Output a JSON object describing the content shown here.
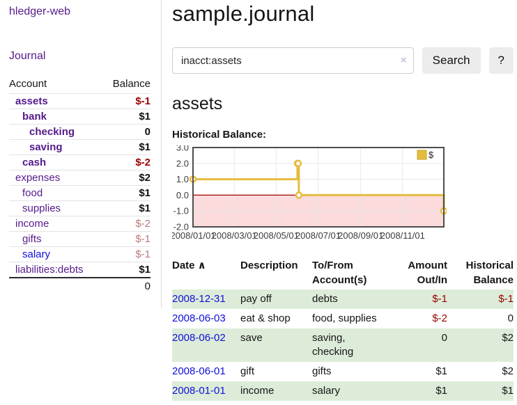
{
  "app": {
    "brand": "hledger-web"
  },
  "sidebar": {
    "journal_label": "Journal",
    "table": {
      "account_header": "Account",
      "balance_header": "Balance",
      "rows": [
        {
          "account": "assets",
          "balance": "$-1",
          "level": 1,
          "bold": true,
          "link_color": "purple",
          "balance_class": "neg-strong"
        },
        {
          "account": "bank",
          "balance": "$1",
          "level": 2,
          "bold": true,
          "link_color": "purple",
          "balance_class": "num-strong"
        },
        {
          "account": "checking",
          "balance": "0",
          "level": 3,
          "bold": true,
          "link_color": "purple",
          "balance_class": "num-strong"
        },
        {
          "account": "saving",
          "balance": "$1",
          "level": 3,
          "bold": true,
          "link_color": "purple",
          "balance_class": "num-strong"
        },
        {
          "account": "cash",
          "balance": "$-2",
          "level": 2,
          "bold": true,
          "link_color": "purple",
          "balance_class": "neg-strong"
        },
        {
          "account": "expenses",
          "balance": "$2",
          "level": 1,
          "bold": false,
          "link_color": "purple",
          "balance_class": "num"
        },
        {
          "account": "food",
          "balance": "$1",
          "level": 2,
          "bold": false,
          "link_color": "purple",
          "balance_class": "num"
        },
        {
          "account": "supplies",
          "balance": "$1",
          "level": 2,
          "bold": false,
          "link_color": "purple",
          "balance_class": "num"
        },
        {
          "account": "income",
          "balance": "$-2",
          "level": 1,
          "bold": false,
          "link_color": "purple",
          "balance_class": "neg-muted"
        },
        {
          "account": "gifts",
          "balance": "$-1",
          "level": 2,
          "bold": false,
          "link_color": "purple",
          "balance_class": "neg-muted"
        },
        {
          "account": "salary",
          "balance": "$-1",
          "level": 2,
          "bold": false,
          "link_color": "blue",
          "balance_class": "neg-muted"
        },
        {
          "account": "liabilities:debts",
          "balance": "$1",
          "level": 1,
          "bold": false,
          "link_color": "purple",
          "balance_class": "num"
        }
      ],
      "total": "0"
    }
  },
  "header": {
    "title": "sample.journal"
  },
  "search": {
    "value": "inacct:assets",
    "clear_icon": "×",
    "button_label": "Search",
    "help_label": "?"
  },
  "account_page": {
    "heading": "assets",
    "chart_label": "Historical Balance:"
  },
  "chart_data": {
    "type": "line",
    "title": "Historical Balance",
    "step": "after",
    "series": [
      {
        "name": "$",
        "color": "#e6bc3e",
        "points": [
          [
            "2008-01-01",
            1
          ],
          [
            "2008-06-01",
            2
          ],
          [
            "2008-06-02",
            2
          ],
          [
            "2008-06-03",
            0
          ],
          [
            "2008-12-31",
            -1
          ]
        ]
      }
    ],
    "x_ticks": [
      "2008/01/01",
      "2008/03/01",
      "2008/05/01",
      "2008/07/01",
      "2008/09/01",
      "2008/11/01"
    ],
    "y_ticks": [
      3.0,
      2.0,
      1.0,
      0.0,
      -1.0,
      -2.0
    ],
    "xlim": [
      "2008-01-01",
      "2008-12-31"
    ],
    "ylim": [
      -2,
      3
    ],
    "grid": true,
    "legend": {
      "label": "$",
      "position": "top-right"
    },
    "colors": {
      "negative_region": "#fbdbdb",
      "zero_line": "#a40000",
      "grid_line": "#e8e8e8",
      "border": "#4d4d4d",
      "tick_text": "#3c3c3c",
      "marker_fill": "#ffffff"
    }
  },
  "register": {
    "columns": [
      {
        "label": "Date",
        "sort_icon": "∧",
        "align": "left"
      },
      {
        "label": "Description",
        "align": "left"
      },
      {
        "label": "To/From Account(s)",
        "align": "left"
      },
      {
        "label": "Amount Out/In",
        "align": "right"
      },
      {
        "label": "Historical Balance",
        "align": "right"
      }
    ],
    "rows": [
      {
        "date": "2008-12-31",
        "description": "pay off",
        "accounts": "debts",
        "amount": "$-1",
        "balance": "$-1",
        "amount_neg": true,
        "balance_neg": true
      },
      {
        "date": "2008-06-03",
        "description": "eat & shop",
        "accounts": "food, supplies",
        "amount": "$-2",
        "balance": "0",
        "amount_neg": true,
        "balance_neg": false
      },
      {
        "date": "2008-06-02",
        "description": "save",
        "accounts": "saving, checking",
        "amount": "0",
        "balance": "$2",
        "amount_neg": false,
        "balance_neg": false
      },
      {
        "date": "2008-06-01",
        "description": "gift",
        "accounts": "gifts",
        "amount": "$1",
        "balance": "$2",
        "amount_neg": false,
        "balance_neg": false
      },
      {
        "date": "2008-01-01",
        "description": "income",
        "accounts": "salary",
        "amount": "$1",
        "balance": "$1",
        "amount_neg": false,
        "balance_neg": false
      }
    ]
  }
}
